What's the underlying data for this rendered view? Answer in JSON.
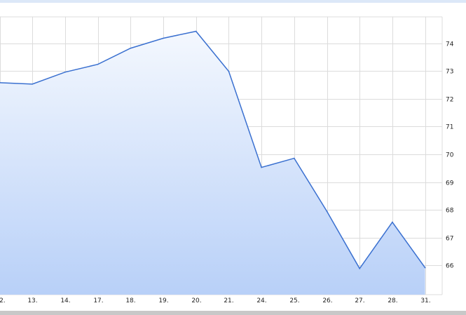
{
  "chart_data": {
    "type": "area",
    "title": "",
    "xlabel": "",
    "ylabel": "",
    "categories": [
      "12.",
      "13.",
      "14.",
      "17.",
      "18.",
      "19.",
      "20.",
      "21.",
      "24.",
      "25.",
      "26.",
      "27.",
      "28.",
      "31."
    ],
    "values": [
      72.58,
      72.53,
      72.96,
      73.24,
      73.82,
      74.18,
      74.43,
      72.99,
      69.53,
      69.86,
      67.95,
      65.89,
      67.56,
      65.92
    ],
    "yticks": [
      "66",
      "67",
      "68",
      "69",
      "70",
      "71",
      "72",
      "73",
      "74"
    ],
    "ylim": [
      64.95,
      74.95
    ],
    "yaxis_side": "right",
    "grid": true,
    "colors": {
      "line": "#3a70d0",
      "fill_top": "#f4f8fe",
      "fill_bottom": "#b8d0f8",
      "grid": "#dcdcdc"
    }
  }
}
